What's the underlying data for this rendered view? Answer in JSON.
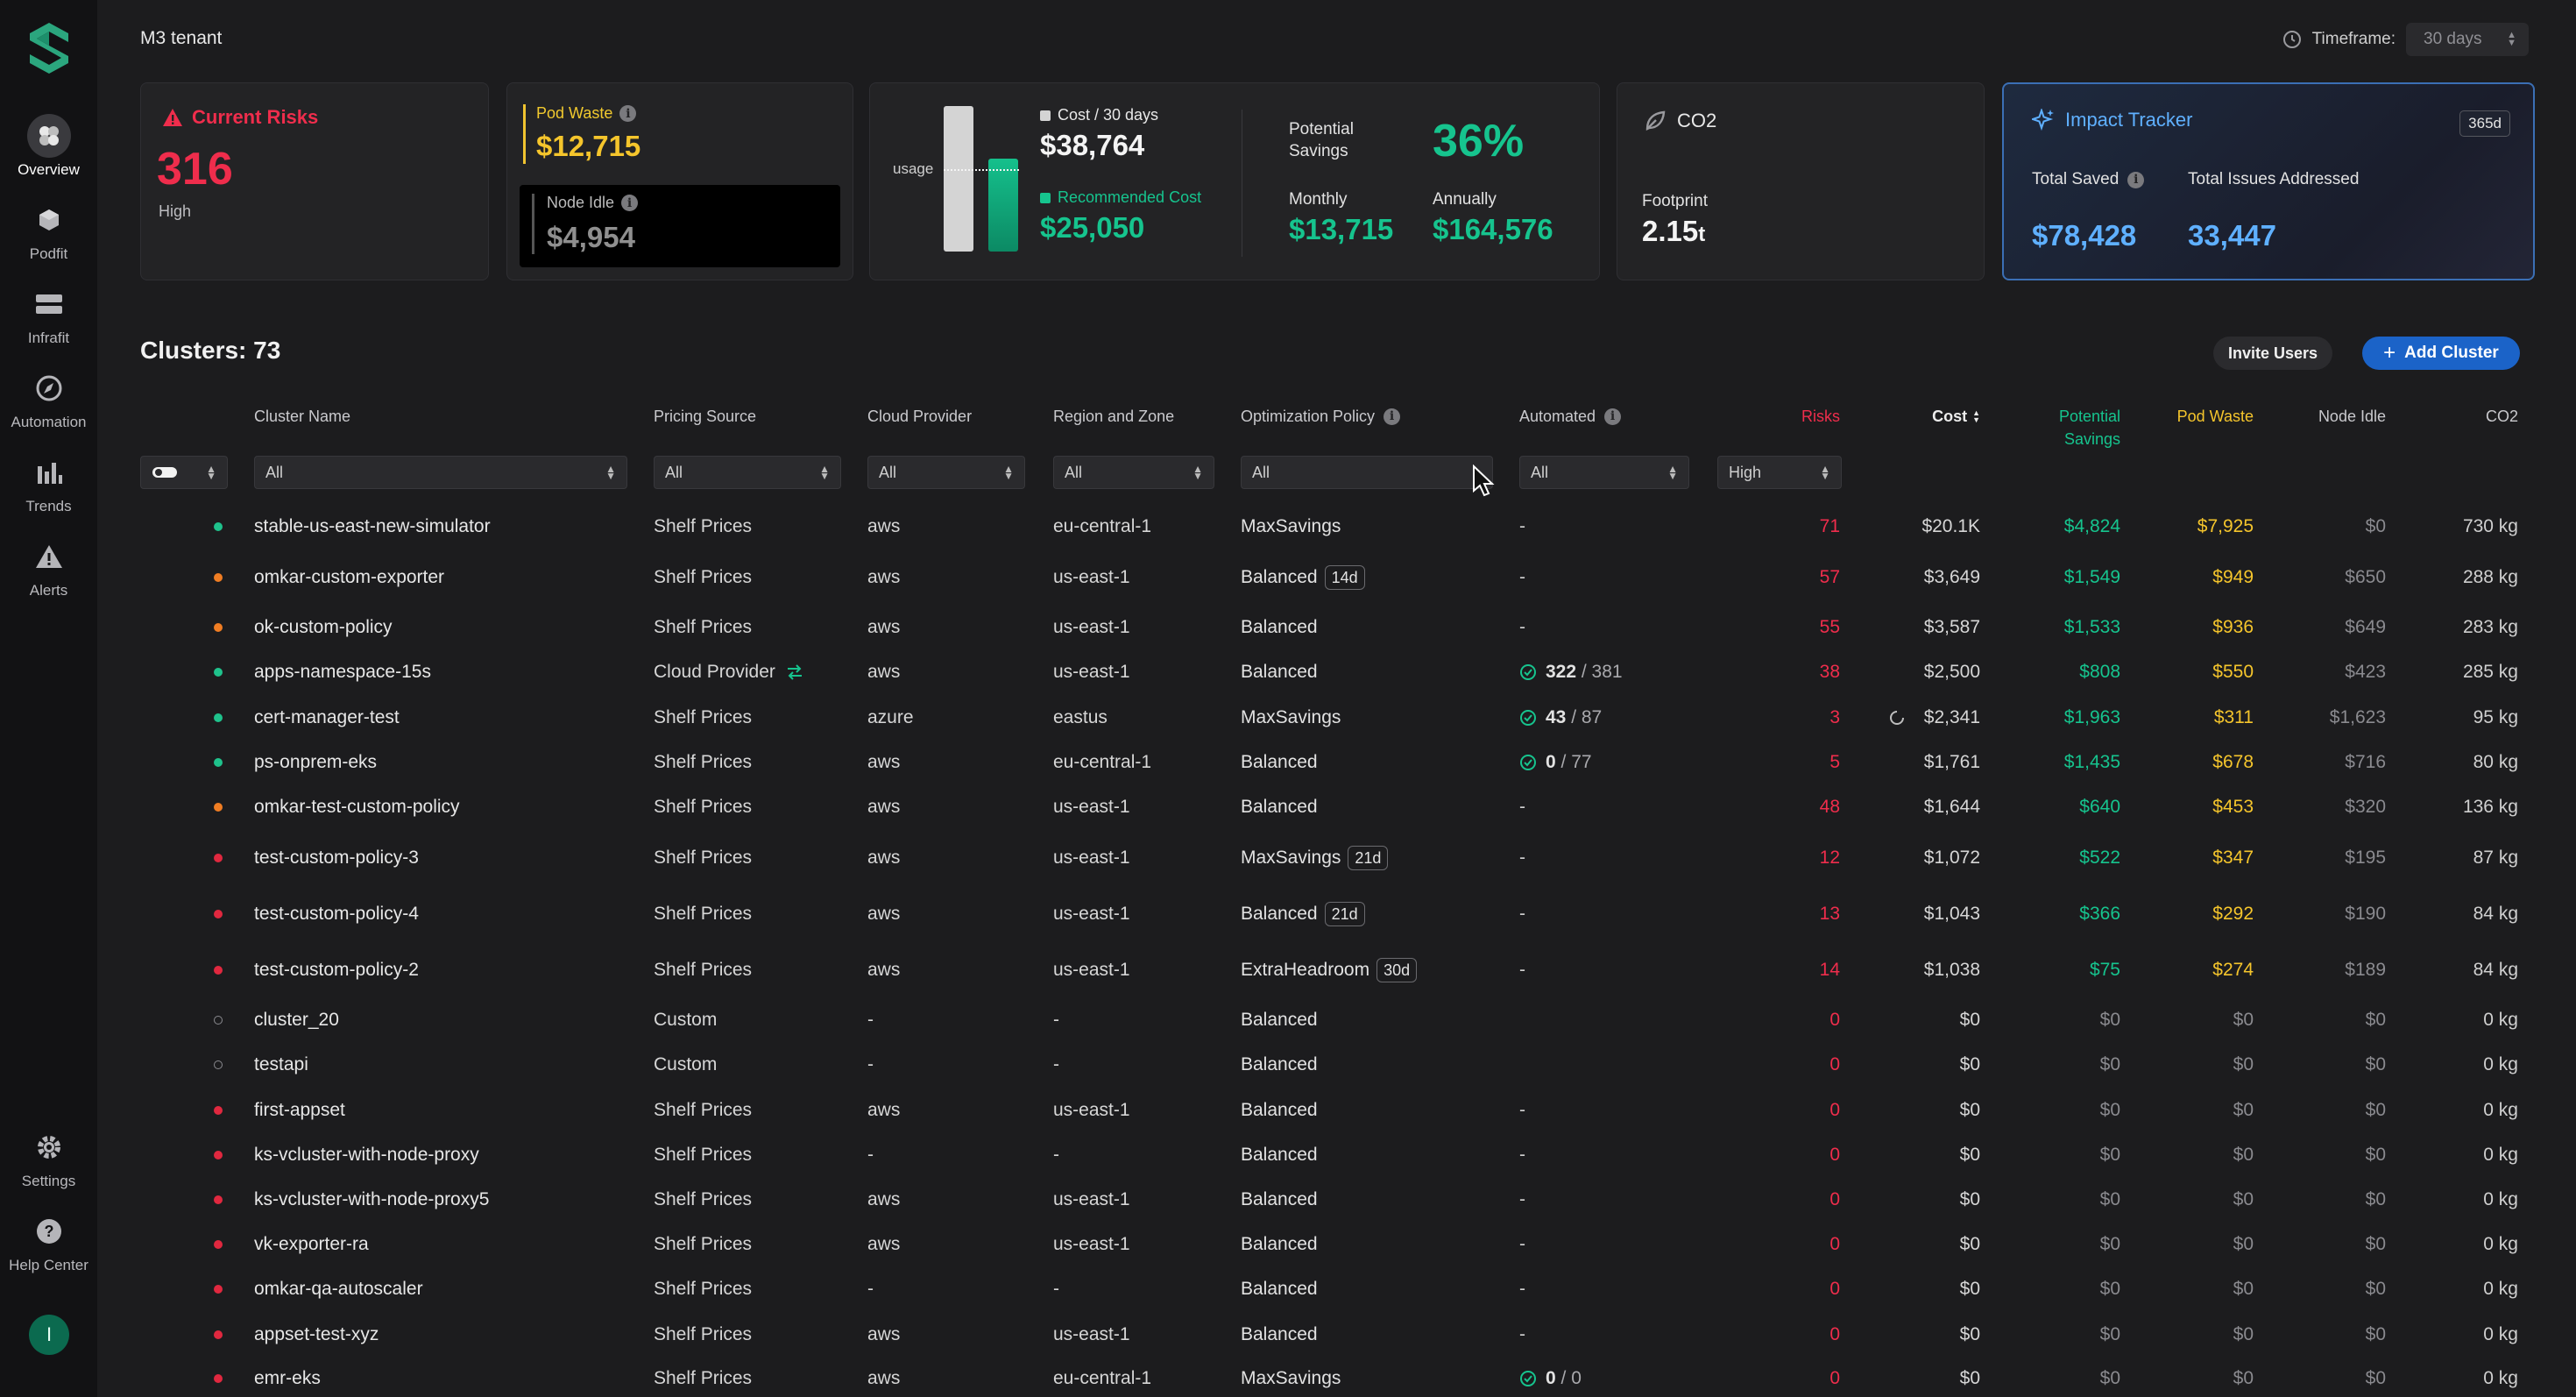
{
  "nav": {
    "items": [
      {
        "label": "Overview",
        "icon": "overview-icon"
      },
      {
        "label": "Podfit",
        "icon": "cube-icon"
      },
      {
        "label": "Infrafit",
        "icon": "server-icon"
      },
      {
        "label": "Automation",
        "icon": "compass-icon"
      },
      {
        "label": "Trends",
        "icon": "bar-chart-icon"
      },
      {
        "label": "Alerts",
        "icon": "warning-icon"
      }
    ],
    "bottom": [
      {
        "label": "Settings",
        "icon": "gear-icon"
      },
      {
        "label": "Help Center",
        "icon": "help-icon"
      }
    ],
    "avatar": "I"
  },
  "header": {
    "tenant": "M3 tenant",
    "timeframe_label": "Timeframe:",
    "timeframe_value": "30 days"
  },
  "cards": {
    "risks": {
      "title": "Current Risks",
      "value": "316",
      "sub": "High"
    },
    "waste": {
      "label": "Pod Waste",
      "value": "$12,715",
      "idle_label": "Node Idle",
      "idle_value": "$4,954"
    },
    "cost": {
      "usage_label": "usage",
      "cost_label": "Cost / 30 days",
      "cost_value": "$38,764",
      "rec_label": "Recommended Cost",
      "rec_value": "$25,050",
      "potential_label": "Potential Savings",
      "potential_value": "36%",
      "monthly_label": "Monthly",
      "monthly_value": "$13,715",
      "annually_label": "Annually",
      "annually_value": "$164,576"
    },
    "co2": {
      "title": "CO2",
      "footprint_label": "Footprint",
      "footprint_value": "2.15",
      "footprint_unit": "t"
    },
    "impact": {
      "title": "Impact Tracker",
      "badge": "365d",
      "saved_label": "Total Saved",
      "saved_value": "$78,428",
      "issues_label": "Total Issues Addressed",
      "issues_value": "33,447"
    }
  },
  "clusters": {
    "title": "Clusters: 73",
    "invite_label": "Invite Users",
    "add_label": "Add Cluster",
    "headers": {
      "name": "Cluster Name",
      "pricing": "Pricing Source",
      "cloud": "Cloud Provider",
      "region": "Region and Zone",
      "policy": "Optimization Policy",
      "automated": "Automated",
      "risks": "Risks",
      "cost": "Cost",
      "potential": "Potential Savings",
      "waste": "Pod Waste",
      "idle": "Node Idle",
      "co2": "CO2"
    },
    "filters": {
      "name": "All",
      "pricing": "All",
      "cloud": "All",
      "region": "All",
      "policy": "All",
      "automated": "All",
      "risks": "High"
    },
    "colors": {
      "green": "#1fc28c",
      "orange": "#f07d23",
      "red": "#e0283f",
      "grey": "#8a8a8f"
    },
    "rows": [
      {
        "status": "green",
        "name": "stable-us-east-new-simulator",
        "pricing": "Shelf Prices",
        "cloud": "aws",
        "region": "eu-central-1",
        "policy": "MaxSavings",
        "tag": "",
        "automated": "-",
        "auto_done": "",
        "auto_total": "",
        "risks": "71",
        "cost": "$20.1K",
        "potential": "$4,824",
        "waste": "$7,925",
        "idle": "$0",
        "co2": "730 kg",
        "syncing": false
      },
      {
        "status": "orange",
        "name": "omkar-custom-exporter",
        "pricing": "Shelf Prices",
        "cloud": "aws",
        "region": "us-east-1",
        "policy": "Balanced",
        "tag": "14d",
        "automated": "-",
        "auto_done": "",
        "auto_total": "",
        "risks": "57",
        "cost": "$3,649",
        "potential": "$1,549",
        "waste": "$949",
        "idle": "$650",
        "co2": "288 kg",
        "syncing": false
      },
      {
        "status": "orange",
        "name": "ok-custom-policy",
        "pricing": "Shelf Prices",
        "cloud": "aws",
        "region": "us-east-1",
        "policy": "Balanced",
        "tag": "",
        "automated": "-",
        "auto_done": "",
        "auto_total": "",
        "risks": "55",
        "cost": "$3,587",
        "potential": "$1,533",
        "waste": "$936",
        "idle": "$649",
        "co2": "283 kg",
        "syncing": false
      },
      {
        "status": "green",
        "name": "apps-namespace-15s",
        "pricing": "Cloud Provider",
        "pricing_icon": true,
        "cloud": "aws",
        "region": "us-east-1",
        "policy": "Balanced",
        "tag": "",
        "automated": "",
        "auto_done": "322",
        "auto_total": "/ 381",
        "risks": "38",
        "cost": "$2,500",
        "potential": "$808",
        "waste": "$550",
        "idle": "$423",
        "co2": "285 kg",
        "syncing": false
      },
      {
        "status": "green",
        "name": "cert-manager-test",
        "pricing": "Shelf Prices",
        "cloud": "azure",
        "region": "eastus",
        "policy": "MaxSavings",
        "tag": "",
        "automated": "",
        "auto_done": "43",
        "auto_total": "/ 87",
        "risks": "3",
        "cost": "$2,341",
        "potential": "$1,963",
        "waste": "$311",
        "idle": "$1,623",
        "co2": "95 kg",
        "syncing": true
      },
      {
        "status": "green",
        "name": "ps-onprem-eks",
        "pricing": "Shelf Prices",
        "cloud": "aws",
        "region": "eu-central-1",
        "policy": "Balanced",
        "tag": "",
        "automated": "",
        "auto_done": "0",
        "auto_total": "/ 77",
        "risks": "5",
        "cost": "$1,761",
        "potential": "$1,435",
        "waste": "$678",
        "idle": "$716",
        "co2": "80 kg",
        "syncing": false
      },
      {
        "status": "orange",
        "name": "omkar-test-custom-policy",
        "pricing": "Shelf Prices",
        "cloud": "aws",
        "region": "us-east-1",
        "policy": "Balanced",
        "tag": "",
        "automated": "-",
        "auto_done": "",
        "auto_total": "",
        "risks": "48",
        "cost": "$1,644",
        "potential": "$640",
        "waste": "$453",
        "idle": "$320",
        "co2": "136 kg",
        "syncing": false
      },
      {
        "status": "red",
        "name": "test-custom-policy-3",
        "pricing": "Shelf Prices",
        "cloud": "aws",
        "region": "us-east-1",
        "policy": "MaxSavings",
        "tag": "21d",
        "automated": "-",
        "auto_done": "",
        "auto_total": "",
        "risks": "12",
        "cost": "$1,072",
        "potential": "$522",
        "waste": "$347",
        "idle": "$195",
        "co2": "87 kg",
        "syncing": false
      },
      {
        "status": "red",
        "name": "test-custom-policy-4",
        "pricing": "Shelf Prices",
        "cloud": "aws",
        "region": "us-east-1",
        "policy": "Balanced",
        "tag": "21d",
        "automated": "-",
        "auto_done": "",
        "auto_total": "",
        "risks": "13",
        "cost": "$1,043",
        "potential": "$366",
        "waste": "$292",
        "idle": "$190",
        "co2": "84 kg",
        "syncing": false
      },
      {
        "status": "red",
        "name": "test-custom-policy-2",
        "pricing": "Shelf Prices",
        "cloud": "aws",
        "region": "us-east-1",
        "policy": "ExtraHeadroom",
        "tag": "30d",
        "automated": "-",
        "auto_done": "",
        "auto_total": "",
        "risks": "14",
        "cost": "$1,038",
        "potential": "$75",
        "waste": "$274",
        "idle": "$189",
        "co2": "84 kg",
        "syncing": false
      },
      {
        "status": "empty",
        "name": "cluster_20",
        "pricing": "Custom",
        "cloud": "-",
        "region": "-",
        "policy": "Balanced",
        "tag": "",
        "automated": "",
        "auto_done": "",
        "auto_total": "",
        "risks": "0",
        "cost": "$0",
        "potential": "$0",
        "waste": "$0",
        "idle": "$0",
        "co2": "0 kg",
        "syncing": false
      },
      {
        "status": "empty",
        "name": "testapi",
        "pricing": "Custom",
        "cloud": "-",
        "region": "-",
        "policy": "Balanced",
        "tag": "",
        "automated": "",
        "auto_done": "",
        "auto_total": "",
        "risks": "0",
        "cost": "$0",
        "potential": "$0",
        "waste": "$0",
        "idle": "$0",
        "co2": "0 kg",
        "syncing": false
      },
      {
        "status": "red",
        "name": "first-appset",
        "pricing": "Shelf Prices",
        "cloud": "aws",
        "region": "us-east-1",
        "policy": "Balanced",
        "tag": "",
        "automated": "-",
        "auto_done": "",
        "auto_total": "",
        "risks": "0",
        "cost": "$0",
        "potential": "$0",
        "waste": "$0",
        "idle": "$0",
        "co2": "0 kg",
        "syncing": false
      },
      {
        "status": "red",
        "name": "ks-vcluster-with-node-proxy",
        "pricing": "Shelf Prices",
        "cloud": "-",
        "region": "-",
        "policy": "Balanced",
        "tag": "",
        "automated": "-",
        "auto_done": "",
        "auto_total": "",
        "risks": "0",
        "cost": "$0",
        "potential": "$0",
        "waste": "$0",
        "idle": "$0",
        "co2": "0 kg",
        "syncing": false
      },
      {
        "status": "red",
        "name": "ks-vcluster-with-node-proxy5",
        "pricing": "Shelf Prices",
        "cloud": "aws",
        "region": "us-east-1",
        "policy": "Balanced",
        "tag": "",
        "automated": "-",
        "auto_done": "",
        "auto_total": "",
        "risks": "0",
        "cost": "$0",
        "potential": "$0",
        "waste": "$0",
        "idle": "$0",
        "co2": "0 kg",
        "syncing": false
      },
      {
        "status": "red",
        "name": "vk-exporter-ra",
        "pricing": "Shelf Prices",
        "cloud": "aws",
        "region": "us-east-1",
        "policy": "Balanced",
        "tag": "",
        "automated": "-",
        "auto_done": "",
        "auto_total": "",
        "risks": "0",
        "cost": "$0",
        "potential": "$0",
        "waste": "$0",
        "idle": "$0",
        "co2": "0 kg",
        "syncing": false
      },
      {
        "status": "red",
        "name": "omkar-qa-autoscaler",
        "pricing": "Shelf Prices",
        "cloud": "-",
        "region": "-",
        "policy": "Balanced",
        "tag": "",
        "automated": "-",
        "auto_done": "",
        "auto_total": "",
        "risks": "0",
        "cost": "$0",
        "potential": "$0",
        "waste": "$0",
        "idle": "$0",
        "co2": "0 kg",
        "syncing": false
      },
      {
        "status": "red",
        "name": "appset-test-xyz",
        "pricing": "Shelf Prices",
        "cloud": "aws",
        "region": "us-east-1",
        "policy": "Balanced",
        "tag": "",
        "automated": "-",
        "auto_done": "",
        "auto_total": "",
        "risks": "0",
        "cost": "$0",
        "potential": "$0",
        "waste": "$0",
        "idle": "$0",
        "co2": "0 kg",
        "syncing": false
      },
      {
        "status": "red",
        "name": "emr-eks",
        "pricing": "Shelf Prices",
        "cloud": "aws",
        "region": "eu-central-1",
        "policy": "MaxSavings",
        "tag": "",
        "automated": "",
        "auto_done": "0",
        "auto_total": "/ 0",
        "risks": "0",
        "cost": "$0",
        "potential": "$0",
        "waste": "$0",
        "idle": "$0",
        "co2": "0 kg",
        "syncing": false
      }
    ]
  }
}
